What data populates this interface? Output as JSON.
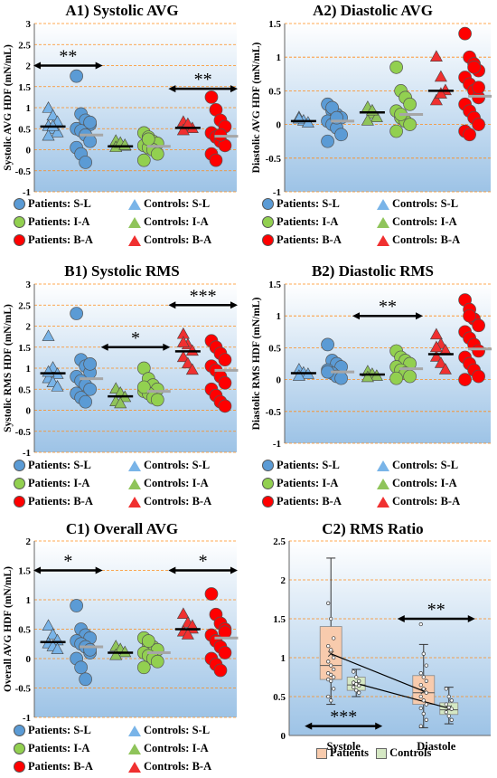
{
  "colors": {
    "sl": "#5b9bd5",
    "ia": "#92d050",
    "ba": "#ff0000",
    "sl_ctrl": "#79b4e8",
    "ia_ctrl": "#8fc45a",
    "ba_ctrl": "#f03030",
    "mean_line": "#000000",
    "gray_line": "#a6a6a6",
    "grid": "#ff8c1a",
    "bg_top": "#ffffff",
    "bg_bottom": "#9dc3e6",
    "box_pat": "#f8cbad",
    "box_ctrl": "#d5e8c4"
  },
  "legend": {
    "patients_sl": "Patients: S-L",
    "controls_sl": "Controls: S-L",
    "patients_ia": "Patients: I-A",
    "controls_ia": "Controls: I-A",
    "patients_ba": "Patients: B-A",
    "controls_ba": "Controls: B-A"
  },
  "box_legend": {
    "patients": "Patients",
    "controls": "Controls"
  },
  "chart_data": [
    {
      "id": "A1",
      "type": "scatter",
      "title": "A1) Systolic AVG",
      "ylabel": "Systolic AVG HDF (mN/mL)",
      "ylim": [
        -1,
        3
      ],
      "yticks": [
        "-1",
        "-0.5",
        "0",
        "0.5",
        "1",
        "1.5",
        "2",
        "2.5",
        "3"
      ],
      "ytick_values": [
        -1,
        -0.5,
        0,
        0.5,
        1,
        1.5,
        2,
        2.5,
        3
      ],
      "groups": [
        {
          "name": "S-L",
          "controls": [
            0.98,
            0.8,
            0.65,
            0.55,
            0.48,
            0.4,
            0.32,
            0.55
          ],
          "patients": [
            1.75,
            0.85,
            0.7,
            0.6,
            0.5,
            0.45,
            0.35,
            0.2,
            0.05,
            -0.1,
            -0.3,
            0.65
          ],
          "ctrl_mean": 0.55,
          "pat_mean": 0.35
        },
        {
          "name": "I-A",
          "controls": [
            0.2,
            0.12,
            0.08,
            0.05,
            0.15,
            0.1
          ],
          "patients": [
            0.4,
            0.3,
            0.2,
            0.15,
            0.1,
            0.05,
            0.0,
            -0.1,
            -0.25,
            0.25
          ],
          "ctrl_mean": 0.08,
          "pat_mean": 0.08
        },
        {
          "name": "B-A",
          "controls": [
            0.65,
            0.55,
            0.5,
            0.45,
            0.6
          ],
          "patients": [
            1.25,
            0.95,
            0.7,
            0.55,
            0.4,
            0.3,
            0.2,
            0.1,
            -0.1,
            -0.25,
            0.35
          ],
          "ctrl_mean": 0.52,
          "pat_mean": 0.32
        }
      ],
      "sig": [
        {
          "label": "**",
          "y": 2.0,
          "x0": 0,
          "x1": 1
        },
        {
          "label": "**",
          "y": 1.45,
          "x0": 4,
          "x1": 5
        }
      ]
    },
    {
      "id": "A2",
      "type": "scatter",
      "title": "A2) Diastolic AVG",
      "ylabel": "Diastolic AVG HDF (mN/mL)",
      "ylim": [
        -1,
        1.5
      ],
      "yticks": [
        "-1",
        "-0.5",
        "0",
        "0.5",
        "1",
        "1.5"
      ],
      "ytick_values": [
        -1,
        -0.5,
        0,
        0.5,
        1,
        1.5
      ],
      "groups": [
        {
          "name": "S-L",
          "controls": [
            0.1,
            0.05,
            0.02,
            0.08
          ],
          "patients": [
            0.3,
            0.2,
            0.15,
            0.1,
            0.05,
            0.0,
            -0.05,
            -0.15,
            -0.25,
            0.25,
            0.1
          ],
          "ctrl_mean": 0.05,
          "pat_mean": 0.05
        },
        {
          "name": "I-A",
          "controls": [
            0.25,
            0.15,
            0.1,
            0.05,
            0.2
          ],
          "patients": [
            0.85,
            0.5,
            0.4,
            0.3,
            0.2,
            0.1,
            0.05,
            0.0,
            -0.1,
            0.15
          ],
          "ctrl_mean": 0.18,
          "pat_mean": 0.15
        },
        {
          "name": "B-A",
          "controls": [
            1.0,
            0.7,
            0.5,
            0.35,
            0.45
          ],
          "patients": [
            1.35,
            1.0,
            0.9,
            0.8,
            0.7,
            0.6,
            0.5,
            0.4,
            0.3,
            0.2,
            0.1,
            0.0,
            -0.1,
            -0.15,
            0.85,
            0.55
          ],
          "ctrl_mean": 0.5,
          "pat_mean": 0.42
        }
      ],
      "sig": []
    },
    {
      "id": "B1",
      "type": "scatter",
      "title": "B1) Systolic RMS",
      "ylabel": "Systolic RMS HDF (mN/mL)",
      "ylim": [
        -1,
        3
      ],
      "yticks": [
        "-1",
        "-0.5",
        "0",
        "0.5",
        "1",
        "1.5",
        "2",
        "2.5",
        "3"
      ],
      "ytick_values": [
        -1,
        -0.5,
        0,
        0.5,
        1,
        1.5,
        2,
        2.5,
        3
      ],
      "groups": [
        {
          "name": "S-L",
          "controls": [
            1.75,
            1.0,
            0.85,
            0.75,
            0.65,
            0.55,
            0.9
          ],
          "patients": [
            2.3,
            1.2,
            1.05,
            0.9,
            0.8,
            0.7,
            0.6,
            0.5,
            0.4,
            0.3,
            0.2,
            1.1
          ],
          "ctrl_mean": 0.88,
          "pat_mean": 0.75
        },
        {
          "name": "I-A",
          "controls": [
            0.5,
            0.4,
            0.3,
            0.2,
            0.15
          ],
          "patients": [
            1.0,
            0.75,
            0.6,
            0.5,
            0.45,
            0.4,
            0.3,
            0.25,
            0.55
          ],
          "ctrl_mean": 0.33,
          "pat_mean": 0.45
        },
        {
          "name": "B-A",
          "controls": [
            1.8,
            1.55,
            1.4,
            1.25,
            1.1,
            0.95,
            1.6
          ],
          "patients": [
            1.65,
            1.5,
            1.35,
            1.2,
            1.05,
            0.95,
            0.8,
            0.65,
            0.5,
            0.35,
            0.2,
            0.1
          ],
          "ctrl_mean": 1.4,
          "pat_mean": 0.95
        }
      ],
      "sig": [
        {
          "label": "*",
          "y": 1.5,
          "x0": 2,
          "x1": 3
        },
        {
          "label": "***",
          "y": 2.5,
          "x0": 4,
          "x1": 5
        }
      ]
    },
    {
      "id": "B2",
      "type": "scatter",
      "title": "B2) Diastolic RMS",
      "ylabel": "Diastolic RMS HDF (mN/mL)",
      "ylim": [
        -1,
        1.5
      ],
      "yticks": [
        "-1",
        "-0.5",
        "0",
        "0.5",
        "1",
        "1.5"
      ],
      "ytick_values": [
        -1,
        -0.5,
        0,
        0.5,
        1,
        1.5
      ],
      "groups": [
        {
          "name": "S-L",
          "controls": [
            0.15,
            0.1,
            0.08,
            0.05
          ],
          "patients": [
            0.55,
            0.3,
            0.25,
            0.2,
            0.15,
            0.1,
            0.05,
            0.02,
            0.12
          ],
          "ctrl_mean": 0.1,
          "pat_mean": 0.12
        },
        {
          "name": "I-A",
          "controls": [
            0.12,
            0.08,
            0.05,
            0.03
          ],
          "patients": [
            0.45,
            0.35,
            0.3,
            0.25,
            0.2,
            0.15,
            0.1,
            0.05,
            0.02
          ],
          "ctrl_mean": 0.08,
          "pat_mean": 0.17
        },
        {
          "name": "B-A",
          "controls": [
            0.7,
            0.55,
            0.45,
            0.35,
            0.25,
            0.15,
            0.5
          ],
          "patients": [
            1.25,
            1.1,
            0.95,
            0.85,
            0.75,
            0.65,
            0.55,
            0.45,
            0.35,
            0.25,
            0.15,
            0.05,
            0.0,
            1.0
          ],
          "ctrl_mean": 0.4,
          "pat_mean": 0.48
        }
      ],
      "sig": [
        {
          "label": "**",
          "y": 1.0,
          "x0": 2,
          "x1": 3
        }
      ]
    },
    {
      "id": "C1",
      "type": "scatter",
      "title": "C1) Overall AVG",
      "ylabel": "Overall  AVG HDF (mN/mL)",
      "ylim": [
        -1,
        2
      ],
      "yticks": [
        "-1",
        "-0.5",
        "0",
        "0.5",
        "1",
        "1.5",
        "2"
      ],
      "ytick_values": [
        -1,
        -0.5,
        0,
        0.5,
        1,
        1.5,
        2
      ],
      "groups": [
        {
          "name": "S-L",
          "controls": [
            0.55,
            0.4,
            0.3,
            0.25,
            0.2,
            0.15
          ],
          "patients": [
            0.9,
            0.5,
            0.4,
            0.35,
            0.3,
            0.25,
            0.2,
            0.1,
            0.0,
            -0.15,
            -0.35,
            0.15
          ],
          "ctrl_mean": 0.28,
          "pat_mean": 0.2
        },
        {
          "name": "I-A",
          "controls": [
            0.2,
            0.15,
            0.1,
            0.05
          ],
          "patients": [
            0.35,
            0.25,
            0.2,
            0.15,
            0.1,
            0.05,
            0.0,
            -0.05,
            -0.15,
            0.3
          ],
          "ctrl_mean": 0.1,
          "pat_mean": 0.1
        },
        {
          "name": "B-A",
          "controls": [
            0.75,
            0.6,
            0.5,
            0.45,
            0.4,
            0.55
          ],
          "patients": [
            1.1,
            0.75,
            0.6,
            0.5,
            0.4,
            0.3,
            0.2,
            0.1,
            0.0,
            -0.1,
            -0.2,
            0.45
          ],
          "ctrl_mean": 0.5,
          "pat_mean": 0.35
        }
      ],
      "sig": [
        {
          "label": "*",
          "y": 1.5,
          "x0": 0,
          "x1": 1
        },
        {
          "label": "*",
          "y": 1.5,
          "x0": 4,
          "x1": 5
        }
      ]
    },
    {
      "id": "C2",
      "type": "box",
      "title": "C2) RMS Ratio",
      "ylim": [
        0,
        2.5
      ],
      "yticks": [
        "0",
        "0.5",
        "1",
        "1.5",
        "2",
        "2.5"
      ],
      "ytick_values": [
        0,
        0.5,
        1,
        1.5,
        2,
        2.5
      ],
      "categories": [
        "Systole",
        "Diastole"
      ],
      "series": [
        {
          "name": "Patients",
          "boxes": [
            {
              "min": 0.4,
              "q1": 0.72,
              "median": 0.9,
              "q3": 1.4,
              "max": 2.28,
              "mean": 1.05
            },
            {
              "min": 0.1,
              "q1": 0.4,
              "median": 0.55,
              "q3": 0.77,
              "max": 1.17,
              "mean": 0.57
            }
          ]
        },
        {
          "name": "Controls",
          "boxes": [
            {
              "min": 0.5,
              "q1": 0.58,
              "median": 0.65,
              "q3": 0.75,
              "max": 0.85,
              "mean": 0.67
            },
            {
              "min": 0.15,
              "q1": 0.27,
              "median": 0.33,
              "q3": 0.42,
              "max": 0.62,
              "mean": 0.35
            }
          ]
        }
      ],
      "points": [
        [
          1.7,
          1.5,
          1.25,
          1.15,
          1.1,
          1.0,
          0.95,
          0.9,
          0.85,
          0.8,
          0.78,
          0.75,
          0.72,
          0.7,
          0.6,
          0.5,
          0.45
        ],
        [
          0.82,
          0.75,
          0.7,
          0.68,
          0.66,
          0.64,
          0.62,
          0.58,
          0.55
        ],
        [
          1.43,
          1.05,
          0.9,
          0.8,
          0.75,
          0.7,
          0.65,
          0.6,
          0.55,
          0.5,
          0.45,
          0.4,
          0.35,
          0.28,
          0.2,
          0.12
        ],
        [
          0.6,
          0.5,
          0.45,
          0.4,
          0.36,
          0.34,
          0.3,
          0.25,
          0.2
        ]
      ],
      "sig": [
        {
          "label": "***",
          "y": 0.12,
          "cat": 0
        },
        {
          "label": "**",
          "y": 1.5,
          "cat": 1
        }
      ]
    }
  ]
}
